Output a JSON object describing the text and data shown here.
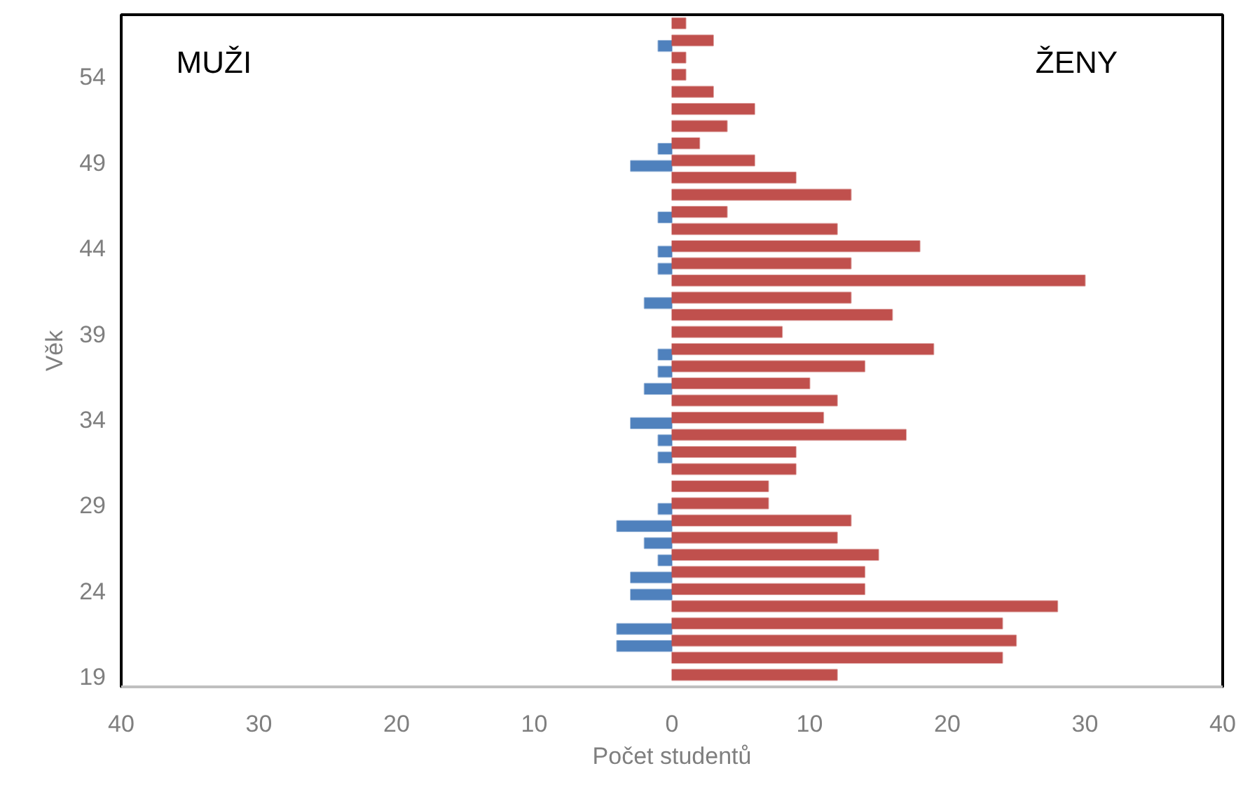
{
  "chart_data": {
    "type": "bar",
    "orientation": "horizontal",
    "xlabel": "Počet studentů",
    "ylabel": "Věk",
    "annotations": [
      "MUŽI",
      "ŽENY"
    ],
    "categories": [
      null,
      null,
      null,
      "54",
      null,
      null,
      null,
      null,
      "49",
      null,
      null,
      null,
      null,
      "44",
      null,
      null,
      null,
      null,
      "39",
      null,
      null,
      null,
      null,
      "34",
      null,
      null,
      null,
      null,
      "29",
      null,
      null,
      null,
      null,
      "24",
      null,
      null,
      null,
      null,
      "19"
    ],
    "series": [
      {
        "color": "#4f81bd",
        "values": [
          null,
          -1,
          null,
          null,
          null,
          null,
          null,
          -1,
          -3,
          null,
          null,
          -1,
          null,
          -1,
          -1,
          null,
          -2,
          null,
          null,
          -1,
          -1,
          -2,
          null,
          -3,
          -1,
          -1,
          null,
          null,
          -1,
          -4,
          -2,
          -1,
          -3,
          -3,
          null,
          -4,
          -4,
          null,
          null
        ]
      },
      {
        "color": "#c0504d",
        "values": [
          1,
          3,
          1,
          1,
          3,
          6,
          4,
          2,
          6,
          9,
          13,
          4,
          12,
          18,
          13,
          30,
          13,
          16,
          8,
          19,
          14,
          10,
          12,
          11,
          17,
          9,
          9,
          7,
          7,
          13,
          12,
          15,
          14,
          14,
          28,
          24,
          25,
          24,
          12
        ]
      }
    ],
    "xlim": [
      -40,
      40
    ],
    "xticks": [
      {
        "value": -40,
        "label": "40"
      },
      {
        "value": -30,
        "label": "30"
      },
      {
        "value": -20,
        "label": "20"
      },
      {
        "value": -10,
        "label": "10"
      },
      0,
      10,
      20,
      30,
      40
    ],
    "grid": false
  }
}
